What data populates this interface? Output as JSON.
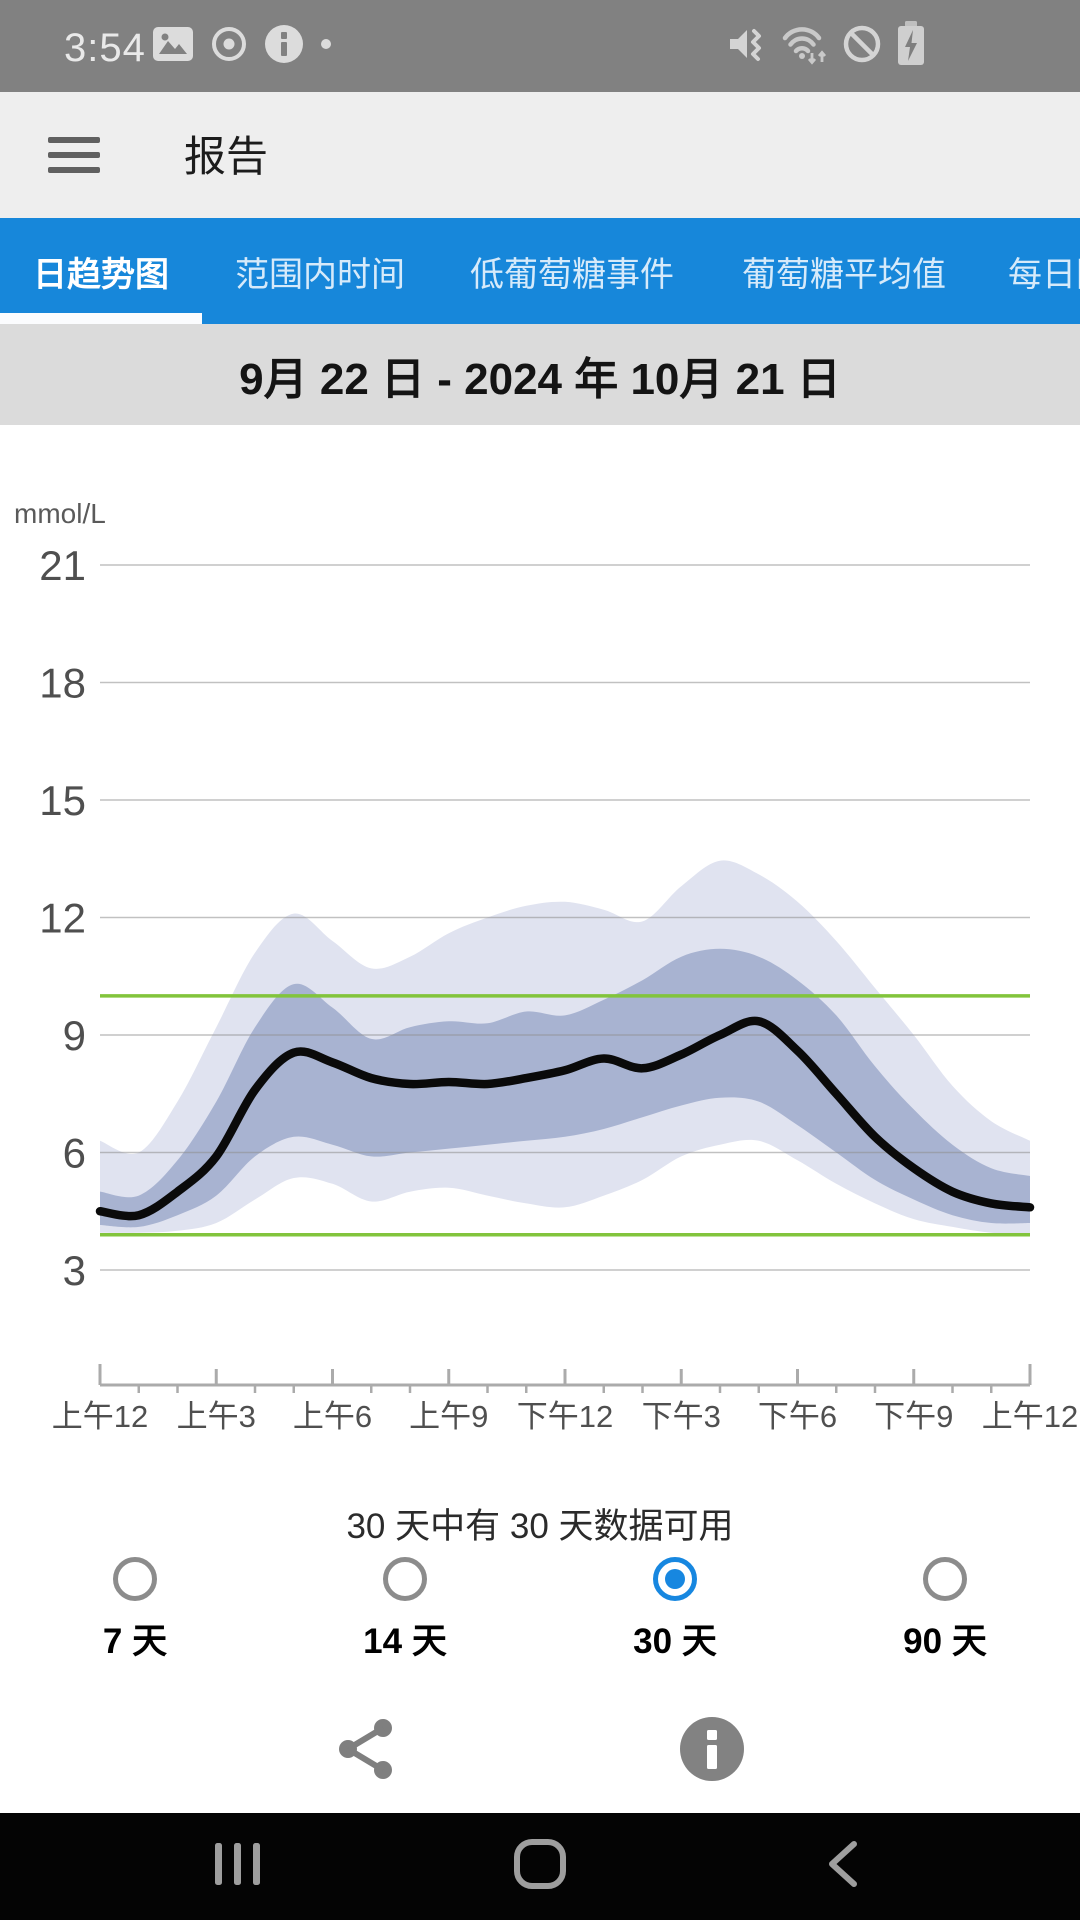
{
  "status_bar": {
    "time": "3:54",
    "left_icons": [
      "image",
      "disc",
      "info",
      "dot"
    ],
    "right_icons": [
      "vibrate-muted",
      "wifi-updown",
      "blocked",
      "battery-charging"
    ]
  },
  "app_bar": {
    "title": "报告"
  },
  "tab_bar": {
    "accent_color": "#1787da",
    "tabs": [
      {
        "label": "日趋势图",
        "active": true
      },
      {
        "label": "范围内时间",
        "active": false
      },
      {
        "label": "低葡萄糖事件",
        "active": false
      },
      {
        "label": "葡萄糖平均值",
        "active": false
      },
      {
        "label": "每日图案",
        "active": false
      }
    ]
  },
  "date_range": "9月 22 日 - 2024 年 10月 21 日",
  "chart_data": {
    "type": "area",
    "title": "日趋势图",
    "unit": "mmol/L",
    "y_axis": {
      "ticks": [
        21,
        18,
        15,
        12,
        9,
        6,
        3
      ],
      "min": 3,
      "max": 21
    },
    "x_axis": {
      "tick_labels": [
        "上午12",
        "上午3",
        "上午6",
        "上午9",
        "下午12",
        "下午3",
        "下午6",
        "下午9",
        "上午12"
      ],
      "tick_hours": [
        0,
        3,
        6,
        9,
        12,
        15,
        18,
        21,
        24
      ],
      "minor_step_hours": 1
    },
    "target_range": {
      "low": 3.9,
      "high": 10.0,
      "color": "#82c43c"
    },
    "hours": [
      0,
      1,
      2,
      3,
      4,
      5,
      6,
      7,
      8,
      9,
      10,
      11,
      12,
      13,
      14,
      15,
      16,
      17,
      18,
      19,
      20,
      21,
      22,
      23,
      24
    ],
    "percentiles": {
      "p10": [
        3.95,
        3.95,
        4.0,
        4.2,
        4.8,
        5.35,
        5.2,
        4.75,
        5.0,
        5.1,
        4.9,
        4.7,
        4.6,
        4.9,
        5.3,
        5.9,
        6.2,
        6.3,
        5.8,
        5.2,
        4.7,
        4.3,
        4.1,
        3.95,
        3.9
      ],
      "p25": [
        4.15,
        4.1,
        4.4,
        4.9,
        5.9,
        6.4,
        6.2,
        5.9,
        6.0,
        6.1,
        6.2,
        6.3,
        6.4,
        6.6,
        6.9,
        7.2,
        7.4,
        7.3,
        6.7,
        6.0,
        5.3,
        4.8,
        4.4,
        4.2,
        4.2
      ],
      "p50": [
        4.5,
        4.4,
        5.0,
        5.9,
        7.6,
        8.55,
        8.3,
        7.9,
        7.75,
        7.8,
        7.75,
        7.9,
        8.1,
        8.4,
        8.15,
        8.5,
        9.0,
        9.35,
        8.6,
        7.5,
        6.4,
        5.6,
        5.0,
        4.7,
        4.6
      ],
      "p75": [
        5.0,
        4.9,
        5.8,
        7.3,
        9.2,
        10.3,
        9.7,
        8.9,
        9.2,
        9.35,
        9.3,
        9.6,
        9.5,
        9.9,
        10.4,
        11.0,
        11.2,
        11.0,
        10.4,
        9.5,
        8.2,
        7.1,
        6.2,
        5.6,
        5.4
      ],
      "p90": [
        6.3,
        6.0,
        7.3,
        9.2,
        11.1,
        12.1,
        11.4,
        10.7,
        11.0,
        11.6,
        12.0,
        12.3,
        12.4,
        12.2,
        11.9,
        12.8,
        13.45,
        13.1,
        12.4,
        11.4,
        10.2,
        9.0,
        7.7,
        6.8,
        6.3
      ]
    },
    "colors": {
      "outer_band": "#e0e3f0",
      "inner_band": "#a8b3d1",
      "median": "#0a0a0a",
      "gridline": "#8f8f8f",
      "axis": "#ababab",
      "y_label": "#4f4f4f",
      "x_label": "#4f4f4f",
      "unit_label": "#5a5a5a"
    }
  },
  "availability_text": "30 天中有 30 天数据可用",
  "period_options": [
    {
      "label": "7 天",
      "selected": false
    },
    {
      "label": "14 天",
      "selected": false
    },
    {
      "label": "30 天",
      "selected": true
    },
    {
      "label": "90 天",
      "selected": false
    }
  ],
  "nav_bar": {
    "buttons": [
      "recents",
      "home",
      "back"
    ]
  }
}
